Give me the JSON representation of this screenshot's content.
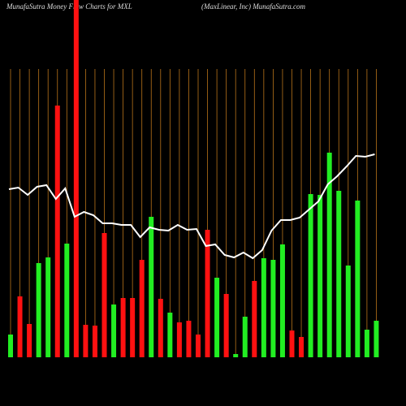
{
  "chart_data": {
    "type": "bar",
    "title": "MunafaSutra  Money Flow  Charts for MXL",
    "subtitle": "(MaxLinear,  Inc) MunafaSutra.com",
    "categories": [
      null,
      null,
      null,
      null,
      null,
      null,
      null,
      null,
      null,
      null,
      null,
      null,
      null,
      null,
      null,
      null,
      null,
      null,
      null,
      null,
      null,
      null,
      null,
      null,
      null,
      null,
      null,
      null,
      null,
      null,
      null,
      null,
      null,
      null,
      null,
      null,
      null,
      null,
      null,
      null
    ],
    "values": [
      28,
      75,
      41,
      116,
      123,
      310,
      140,
      440,
      40,
      39,
      153,
      65,
      73,
      73,
      120,
      173,
      72,
      55,
      43,
      45,
      28,
      157,
      98,
      78,
      4,
      50,
      94,
      122,
      120,
      139,
      33,
      25,
      201,
      200,
      252,
      205,
      113,
      193,
      34,
      45
    ],
    "colors": [
      "#22ee22",
      "#ff1111",
      "#ff1111",
      "#22ee22",
      "#22ee22",
      "#ff1111",
      "#22ee22",
      "#ff1111",
      "#ff1111",
      "#ff1111",
      "#ff1111",
      "#22ee22",
      "#ff1111",
      "#ff1111",
      "#ff1111",
      "#22ee22",
      "#ff1111",
      "#22ee22",
      "#ff1111",
      "#ff1111",
      "#ff1111",
      "#ff1111",
      "#22ee22",
      "#ff1111",
      "#22ee22",
      "#22ee22",
      "#ff1111",
      "#22ee22",
      "#22ee22",
      "#22ee22",
      "#ff1111",
      "#ff1111",
      "#22ee22",
      "#22ee22",
      "#22ee22",
      "#22ee22",
      "#22ee22",
      "#22ee22",
      "#22ee22",
      "#22ee22"
    ],
    "line": {
      "color": "#ffffff",
      "values": [
        207,
        209,
        200,
        210,
        212,
        195,
        208,
        173,
        179,
        175,
        165,
        165,
        163,
        163,
        148,
        160,
        157,
        156,
        163,
        157,
        158,
        137,
        139,
        126,
        123,
        129,
        122,
        132,
        156,
        169,
        169,
        172,
        182,
        192,
        213,
        223,
        235,
        248,
        247,
        250
      ]
    },
    "ylim": [
      0,
      440
    ],
    "grid": true,
    "grid_color": "#b8731a"
  }
}
